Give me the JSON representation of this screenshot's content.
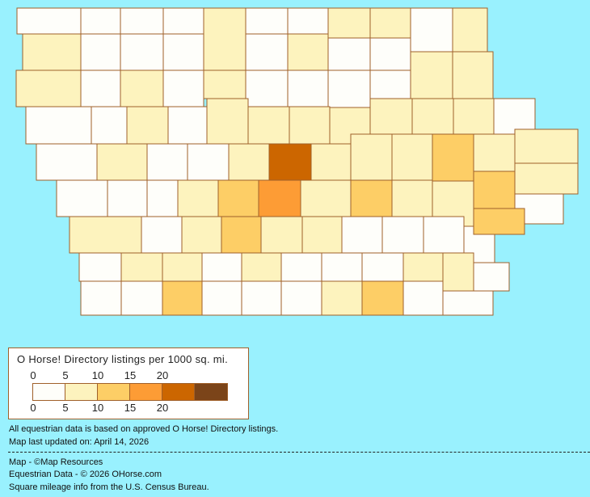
{
  "map": {
    "region": "Iowa",
    "background_color": "#99F1FE",
    "border_color": "#A0602A",
    "county_bins": [
      0,
      0,
      0,
      0,
      1,
      0,
      0,
      1,
      1,
      0,
      1,
      1,
      0,
      0,
      0,
      0,
      1,
      0,
      0,
      1,
      1,
      1,
      0,
      1,
      0,
      1,
      0,
      0,
      0,
      0,
      0,
      0,
      1,
      0,
      1,
      1,
      1,
      1,
      1,
      1,
      1,
      0,
      0,
      1,
      0,
      0,
      1,
      4,
      1,
      1,
      1,
      2,
      1,
      1,
      1,
      0,
      0,
      0,
      1,
      2,
      3,
      1,
      2,
      1,
      1,
      2,
      0,
      1,
      0,
      1,
      2,
      1,
      1,
      0,
      0,
      0,
      0,
      2,
      0,
      1,
      1,
      0,
      1,
      0,
      0,
      0,
      1,
      1,
      0,
      0,
      0,
      2,
      0,
      0,
      0,
      1,
      2,
      0,
      0
    ]
  },
  "legend": {
    "title": "O Horse! Directory listings per 1000 sq. mi.",
    "ticks_top": [
      "0",
      "5",
      "10",
      "15",
      "20"
    ],
    "ticks_bottom": [
      "0",
      "5",
      "10",
      "15",
      "20"
    ],
    "colors": [
      "#FEFEFA",
      "#FDF3BE",
      "#FDCE66",
      "#FD9C35",
      "#CC6600",
      "#7B4419"
    ]
  },
  "notes": {
    "data_basis": "All equestrian data is based on approved O Horse! Directory listings.",
    "updated": "Map last updated on: April 14, 2026",
    "map_credit": "Map - ©Map Resources",
    "data_credit": "Equestrian Data - © 2026 OHorse.com",
    "census_credit": "Square mileage info from the U.S. Census Bureau."
  }
}
